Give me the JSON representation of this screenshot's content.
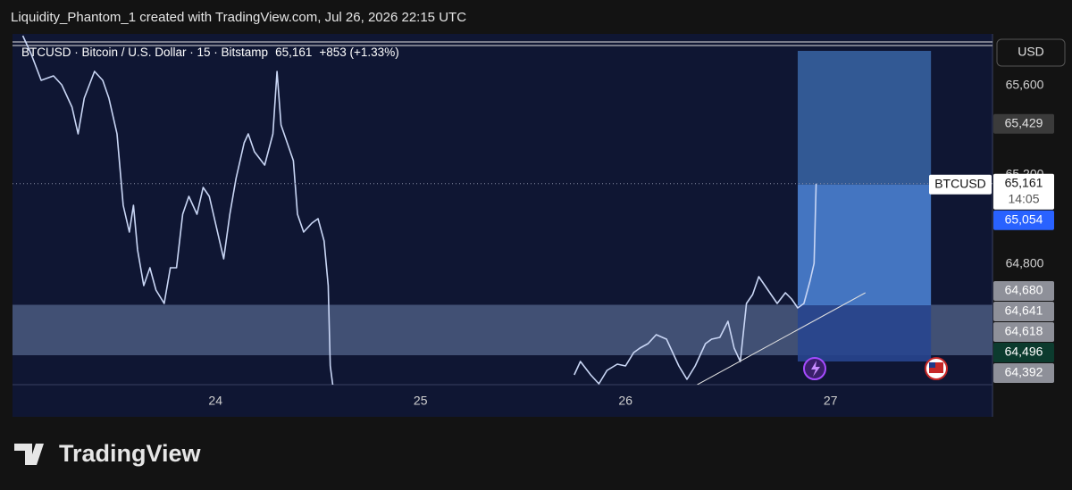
{
  "header": {
    "title": "Liquidity_Phantom_1 created with TradingView.com, Jul 26, 2026 22:15 UTC"
  },
  "footer": {
    "brand": "TradingView"
  },
  "chart_data": {
    "type": "line",
    "title": "BTCUSD · Bitcoin / U.S. Dollar · 15 · Bitstamp",
    "last_price_text": "65,161",
    "change_text": "+853 (+1.33%)",
    "currency": "USD",
    "countdown": "14:05",
    "x": [
      23.06,
      23.1,
      23.15,
      23.21,
      23.25,
      23.3,
      23.33,
      23.36,
      23.41,
      23.45,
      23.48,
      23.52,
      23.55,
      23.58,
      23.6,
      23.62,
      23.65,
      23.68,
      23.71,
      23.75,
      23.78,
      23.81,
      23.84,
      23.87,
      23.91,
      23.94,
      23.97,
      24.0,
      24.04,
      24.07,
      24.1,
      24.14,
      24.16,
      24.19,
      24.24,
      24.28,
      24.3,
      24.32,
      24.35,
      24.38,
      24.4,
      24.43,
      24.47,
      24.5,
      24.53,
      24.55,
      24.56,
      24.58,
      25.1,
      25.75,
      25.78,
      25.83,
      25.87,
      25.91,
      25.96,
      26.0,
      26.04,
      26.07,
      26.11,
      26.15,
      26.2,
      26.23,
      26.26,
      26.3,
      26.34,
      26.39,
      26.42,
      26.46,
      26.5,
      26.53,
      26.56,
      26.59,
      26.62,
      26.65,
      26.68,
      26.71,
      26.74,
      26.78,
      26.81,
      26.84,
      26.87,
      26.9,
      26.92,
      26.93
    ],
    "series": [
      {
        "name": "BTCUSD",
        "color": "#c9d6f5",
        "values": [
          65824,
          65744,
          65624,
          65644,
          65604,
          65504,
          65384,
          65544,
          65664,
          65624,
          65544,
          65384,
          65064,
          64944,
          65064,
          64864,
          64704,
          64784,
          64684,
          64624,
          64784,
          64784,
          65024,
          65104,
          65024,
          65144,
          65104,
          64984,
          64824,
          65024,
          65184,
          65344,
          65384,
          65304,
          65244,
          65384,
          65664,
          65424,
          65344,
          65264,
          65024,
          64944,
          64984,
          65004,
          64904,
          64704,
          64344,
          64204,
          null,
          64304,
          64364,
          64304,
          64264,
          64324,
          64352,
          64344,
          64404,
          64424,
          64444,
          64484,
          64464,
          64404,
          64344,
          64284,
          64344,
          64444,
          64464,
          64472,
          64544,
          64424,
          64364,
          64624,
          64664,
          64744,
          64704,
          64664,
          64624,
          64672,
          64644,
          64604,
          64624,
          64724,
          64804,
          65161
        ]
      }
    ],
    "xlim": [
      23.01,
      27.79
    ],
    "xticks": [
      24,
      25,
      26,
      27
    ],
    "ylim": [
      64260,
      65832
    ],
    "yticks": [
      {
        "value": 64800,
        "label": "64,800"
      },
      {
        "value": 65200,
        "label": "65,200"
      },
      {
        "value": 65600,
        "label": "65,600"
      }
    ],
    "grid": false,
    "zones": [
      {
        "x": [
          23.01,
          27.79
        ],
        "y": [
          64392,
          64618
        ],
        "color": "#4a5a80"
      },
      {
        "x": [
          26.84,
          27.49
        ],
        "y": [
          65156,
          65756
        ],
        "color": "#36609f"
      },
      {
        "x": [
          26.84,
          27.49
        ],
        "y": [
          64616,
          65156
        ],
        "color": "#4a80d0"
      },
      {
        "x": [
          26.84,
          27.49
        ],
        "y": [
          64364,
          64616
        ],
        "color": "#28458f"
      }
    ],
    "trendline": {
      "x": [
        26.35,
        27.17
      ],
      "y": [
        64260,
        64672
      ],
      "color": "#e0e0e0"
    },
    "price_labels": [
      {
        "value": 65429,
        "label": "65,429",
        "color": "#3b3b3b",
        "text_color": "#e0e0e0"
      },
      {
        "value": 65161,
        "label": "65,161",
        "color": "#ffffff",
        "text_color": "#131313"
      },
      {
        "value": 65054,
        "label": "65,054",
        "color": "#2962ff",
        "text_color": "#ffffff"
      },
      {
        "value": 64680,
        "label": "64,680",
        "color": "#8e9099",
        "text_color": "#ffffff"
      },
      {
        "value": 64641,
        "label": "64,641",
        "color": "#8e9099",
        "text_color": "#ffffff"
      },
      {
        "value": 64618,
        "label": "64,618",
        "color": "#8e9099",
        "text_color": "#ffffff"
      },
      {
        "value": 64496,
        "label": "64,496",
        "color": "#0c3b2e",
        "text_color": "#ffffff"
      },
      {
        "value": 64392,
        "label": "64,392",
        "color": "#8e9099",
        "text_color": "#ffffff"
      }
    ]
  }
}
